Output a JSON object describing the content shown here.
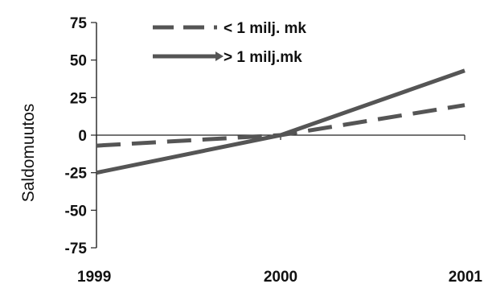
{
  "chart_data": {
    "type": "line",
    "title": "",
    "xlabel": "",
    "ylabel": "Saldomuutos",
    "x": [
      "1999",
      "2000",
      "2001"
    ],
    "ylim": [
      -75,
      75
    ],
    "yticks": [
      75,
      50,
      25,
      0,
      -25,
      -50,
      -75
    ],
    "grid": false,
    "legend_position": "top",
    "series": [
      {
        "name": "< 1 milj. mk",
        "values": [
          -7,
          0,
          20
        ],
        "style": "dashed",
        "color": "#555555"
      },
      {
        "name": "> 1 milj.mk",
        "values": [
          -25,
          0,
          43
        ],
        "style": "solid",
        "color": "#555555"
      }
    ]
  }
}
